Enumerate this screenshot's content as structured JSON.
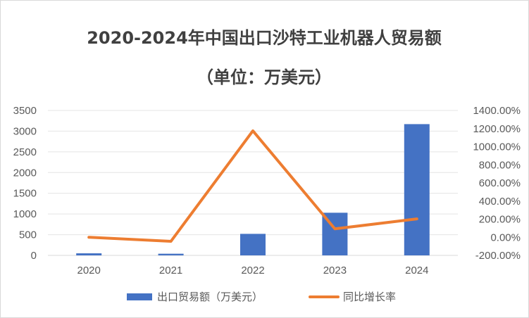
{
  "chart_data": {
    "type": "bar",
    "title_line1": "2020-2024年中国出口沙特工业机器人贸易额",
    "title_line2": "（单位：万美元）",
    "categories": [
      "2020",
      "2021",
      "2022",
      "2023",
      "2024"
    ],
    "series": [
      {
        "name": "出口贸易额（万美元）",
        "type": "bar",
        "axis": "left",
        "color": "#4472c4",
        "values": [
          50,
          40,
          520,
          1030,
          3170
        ]
      },
      {
        "name": "同比增长率",
        "type": "line",
        "axis": "right",
        "color": "#ed7d31",
        "values": [
          0.0,
          -0.45,
          11.75,
          0.93,
          2.03
        ]
      }
    ],
    "y_left": {
      "min": 0,
      "max": 3500,
      "step": 500,
      "ticks": [
        "0",
        "500",
        "1000",
        "1500",
        "2000",
        "2500",
        "3000",
        "3500"
      ]
    },
    "y_right": {
      "min": -2,
      "max": 14,
      "step": 2,
      "ticks": [
        "-200.00%",
        "0.00%",
        "200.00%",
        "400.00%",
        "600.00%",
        "800.00%",
        "1000.00%",
        "1200.00%",
        "1400.00%"
      ]
    },
    "grid": true,
    "legend_position": "bottom"
  }
}
